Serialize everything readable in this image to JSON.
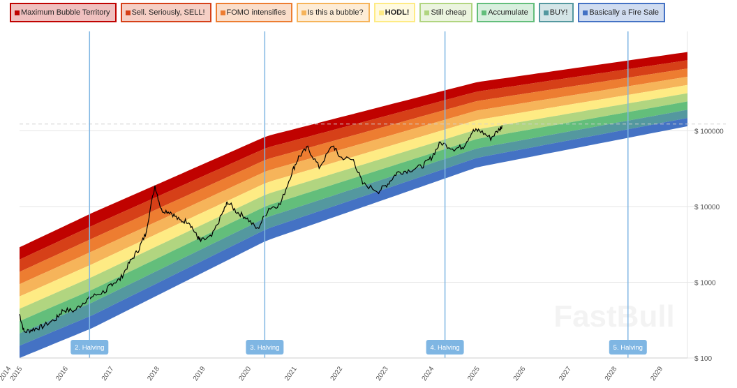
{
  "chart_data": {
    "type": "area",
    "title": "",
    "xlabel": "",
    "ylabel": "",
    "y_scale": "log",
    "ylim": [
      100,
      2000000
    ],
    "xlim": [
      2015.0,
      2029.6
    ],
    "grid": true,
    "legend_position": "top",
    "y_ticks": [
      {
        "value": 100,
        "label": "$ 100"
      },
      {
        "value": 1000,
        "label": "$ 1000"
      },
      {
        "value": 10000,
        "label": "$ 10000"
      },
      {
        "value": 100000,
        "label": "$ 100000"
      }
    ],
    "x_ticks": [
      {
        "value": 2014.95,
        "label": "2014"
      },
      {
        "value": 2015.0,
        "label": "2015"
      },
      {
        "value": 2016,
        "label": "2016"
      },
      {
        "value": 2017,
        "label": "2017"
      },
      {
        "value": 2018,
        "label": "2018"
      },
      {
        "value": 2019,
        "label": "2019"
      },
      {
        "value": 2020,
        "label": "2020"
      },
      {
        "value": 2021,
        "label": "2021"
      },
      {
        "value": 2022,
        "label": "2022"
      },
      {
        "value": 2023,
        "label": "2023"
      },
      {
        "value": 2024,
        "label": "2024"
      },
      {
        "value": 2025,
        "label": "2025"
      },
      {
        "value": 2026,
        "label": "2026"
      },
      {
        "value": 2027,
        "label": "2027"
      },
      {
        "value": 2028,
        "label": "2028"
      },
      {
        "value": 2029,
        "label": "2029"
      }
    ],
    "bands": [
      {
        "name": "Maximum Bubble Territory",
        "color": "#c00200"
      },
      {
        "name": "Sell. Seriously, SELL!",
        "color": "#d64018"
      },
      {
        "name": "FOMO intensifies",
        "color": "#ed7d31"
      },
      {
        "name": "Is this a bubble?",
        "color": "#f6b45a"
      },
      {
        "name": "HODL!",
        "color": "#feeb84"
      },
      {
        "name": "Still cheap",
        "color": "#b1d580"
      },
      {
        "name": "Accumulate",
        "color": "#63be7b"
      },
      {
        "name": "BUY!",
        "color": "#54989f"
      },
      {
        "name": "Basically a Fire Sale",
        "color": "#4472c4"
      }
    ],
    "band_envelope": {
      "years": [
        2015.0,
        2016.6,
        2020.4,
        2025.0,
        2029.6
      ],
      "bottom": [
        100,
        250,
        3550,
        33000,
        115000
      ],
      "top": [
        2900,
        8300,
        85000,
        440000,
        1100000
      ]
    },
    "price_reference_line": 123000,
    "halvings": [
      {
        "year": 2016.53,
        "label": "2. Halving"
      },
      {
        "year": 2020.36,
        "label": "3. Halving"
      },
      {
        "year": 2024.3,
        "label": "4. Halving"
      },
      {
        "year": 2028.3,
        "label": "5. Halving"
      }
    ],
    "price_series": {
      "x": [
        2015.0,
        2015.1,
        2015.3,
        2015.5,
        2015.8,
        2015.95,
        2016.2,
        2016.45,
        2016.6,
        2016.9,
        2017.0,
        2017.2,
        2017.4,
        2017.6,
        2017.75,
        2017.96,
        2018.1,
        2018.3,
        2018.5,
        2018.7,
        2018.88,
        2018.96,
        2019.2,
        2019.45,
        2019.55,
        2019.75,
        2019.95,
        2020.2,
        2020.45,
        2020.7,
        2020.95,
        2021.1,
        2021.3,
        2021.55,
        2021.85,
        2022.0,
        2022.3,
        2022.5,
        2022.85,
        2023.05,
        2023.25,
        2023.5,
        2023.8,
        2024.0,
        2024.2,
        2024.5,
        2024.7,
        2024.9,
        2025.05,
        2025.3,
        2025.5,
        2025.55
      ],
      "y": [
        380,
        220,
        240,
        260,
        330,
        430,
        420,
        580,
        650,
        780,
        950,
        1100,
        1800,
        2700,
        4300,
        19000,
        9000,
        8500,
        6500,
        6400,
        4000,
        3500,
        4000,
        8500,
        11500,
        8500,
        7200,
        5000,
        9500,
        10700,
        28000,
        45000,
        60000,
        33000,
        65000,
        45000,
        41000,
        20000,
        16000,
        20000,
        28000,
        30000,
        34000,
        44000,
        70000,
        58000,
        62000,
        98000,
        102000,
        80000,
        107000,
        118000
      ]
    }
  },
  "watermark": "FastBull"
}
